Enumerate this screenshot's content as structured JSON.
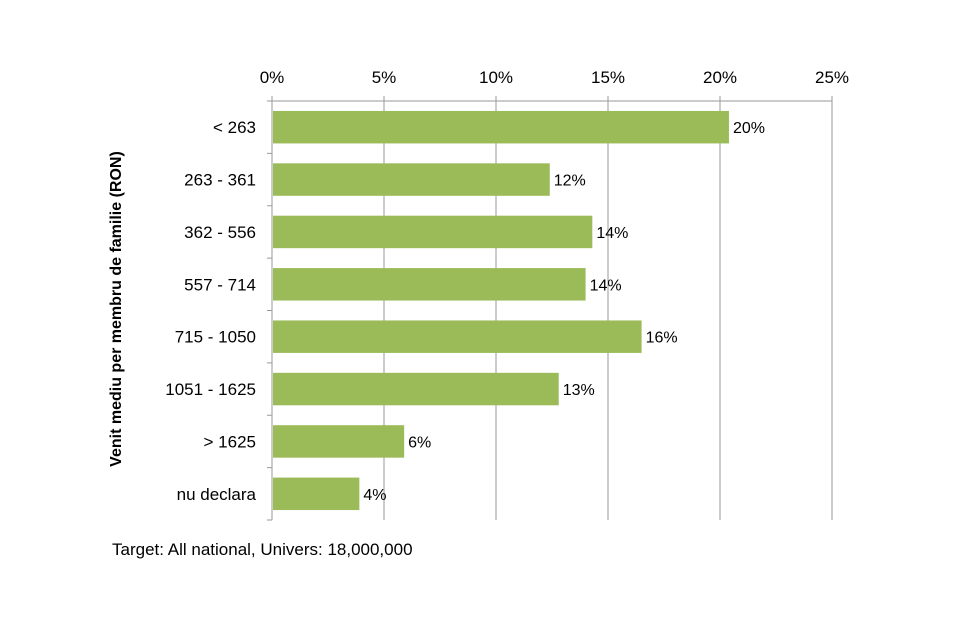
{
  "chart_data": {
    "type": "bar",
    "orientation": "horizontal",
    "categories": [
      "< 263",
      "263 - 361",
      "362 - 556",
      "557 - 714",
      "715 - 1050",
      "1051 - 1625",
      "> 1625",
      "nu declara"
    ],
    "values": [
      20.4,
      12.4,
      14.3,
      14.0,
      16.5,
      12.8,
      5.9,
      3.9
    ],
    "data_labels": [
      "20%",
      "12%",
      "14%",
      "14%",
      "16%",
      "13%",
      "6%",
      "4%"
    ],
    "ylabel": "Venit mediu per membru de familie (RON)",
    "xlim": [
      0,
      25
    ],
    "xticks": [
      0,
      5,
      10,
      15,
      20,
      25
    ],
    "xtick_labels": [
      "0%",
      "5%",
      "10%",
      "15%",
      "20%",
      "25%"
    ],
    "x_axis_position": "top",
    "grid": true,
    "bar_color": "#9bbb59",
    "grid_color": "#9a9a9a"
  },
  "note": "Target: All national, Univers:  18,000,000"
}
